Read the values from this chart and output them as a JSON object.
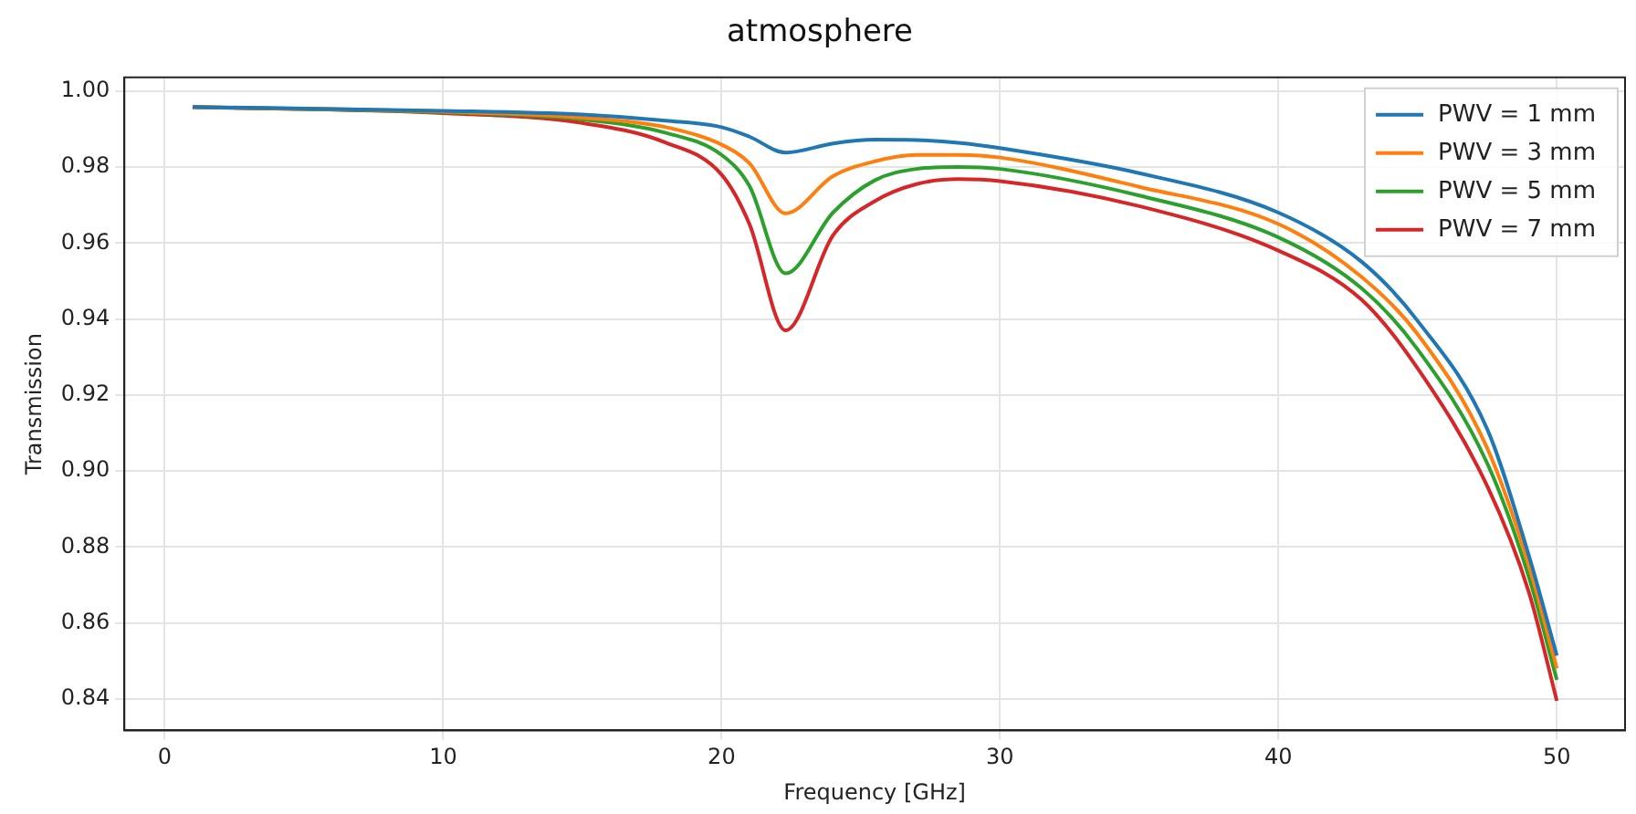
{
  "chart_data": {
    "type": "line",
    "title": "atmosphere",
    "xlabel": "Frequency [GHz]",
    "ylabel": "Transmission",
    "x": [
      1,
      10,
      15,
      18,
      20,
      21,
      22.3,
      24,
      25.5,
      27,
      28.5,
      30,
      35,
      40,
      43,
      45,
      47.5,
      49,
      50
    ],
    "series": [
      {
        "name": "PWV = 1 mm",
        "color": "#1f77b4",
        "values": [
          0.9958,
          0.9948,
          0.9938,
          0.9922,
          0.9905,
          0.988,
          0.9838,
          0.9862,
          0.9872,
          0.9871,
          0.9864,
          0.985,
          0.9784,
          0.968,
          0.955,
          0.9395,
          0.911,
          0.8776,
          0.8514
        ]
      },
      {
        "name": "PWV = 3 mm",
        "color": "#ff7f0e",
        "values": [
          0.9958,
          0.9946,
          0.993,
          0.9905,
          0.9859,
          0.981,
          0.9678,
          0.9776,
          0.9815,
          0.9832,
          0.9832,
          0.9825,
          0.9748,
          0.965,
          0.951,
          0.936,
          0.906,
          0.875,
          0.848
        ]
      },
      {
        "name": "PWV = 5 mm",
        "color": "#2ca02c",
        "values": [
          0.9958,
          0.9944,
          0.9925,
          0.989,
          0.9832,
          0.975,
          0.952,
          0.968,
          0.9765,
          0.9795,
          0.98,
          0.9795,
          0.9725,
          0.9615,
          0.948,
          0.932,
          0.902,
          0.872,
          0.845
        ]
      },
      {
        "name": "PWV = 7 mm",
        "color": "#d62728",
        "values": [
          0.9958,
          0.9942,
          0.9916,
          0.9864,
          0.978,
          0.965,
          0.937,
          0.962,
          0.971,
          0.9755,
          0.9768,
          0.9763,
          0.9697,
          0.958,
          0.945,
          0.927,
          0.896,
          0.868,
          0.8395
        ]
      }
    ],
    "xlim": [
      -1.45,
      52.45
    ],
    "ylim": [
      0.8317,
      1.0036
    ],
    "xticks": [
      0,
      10,
      20,
      30,
      40,
      50
    ],
    "yticks": [
      0.84,
      0.86,
      0.88,
      {
        "value": 0.9,
        "label": "0.90"
      },
      0.92,
      0.94,
      0.96,
      0.98,
      {
        "value": 1,
        "label": "1.00"
      }
    ],
    "grid": true,
    "legend": "top right",
    "marker": "none",
    "line_style": "solid"
  }
}
